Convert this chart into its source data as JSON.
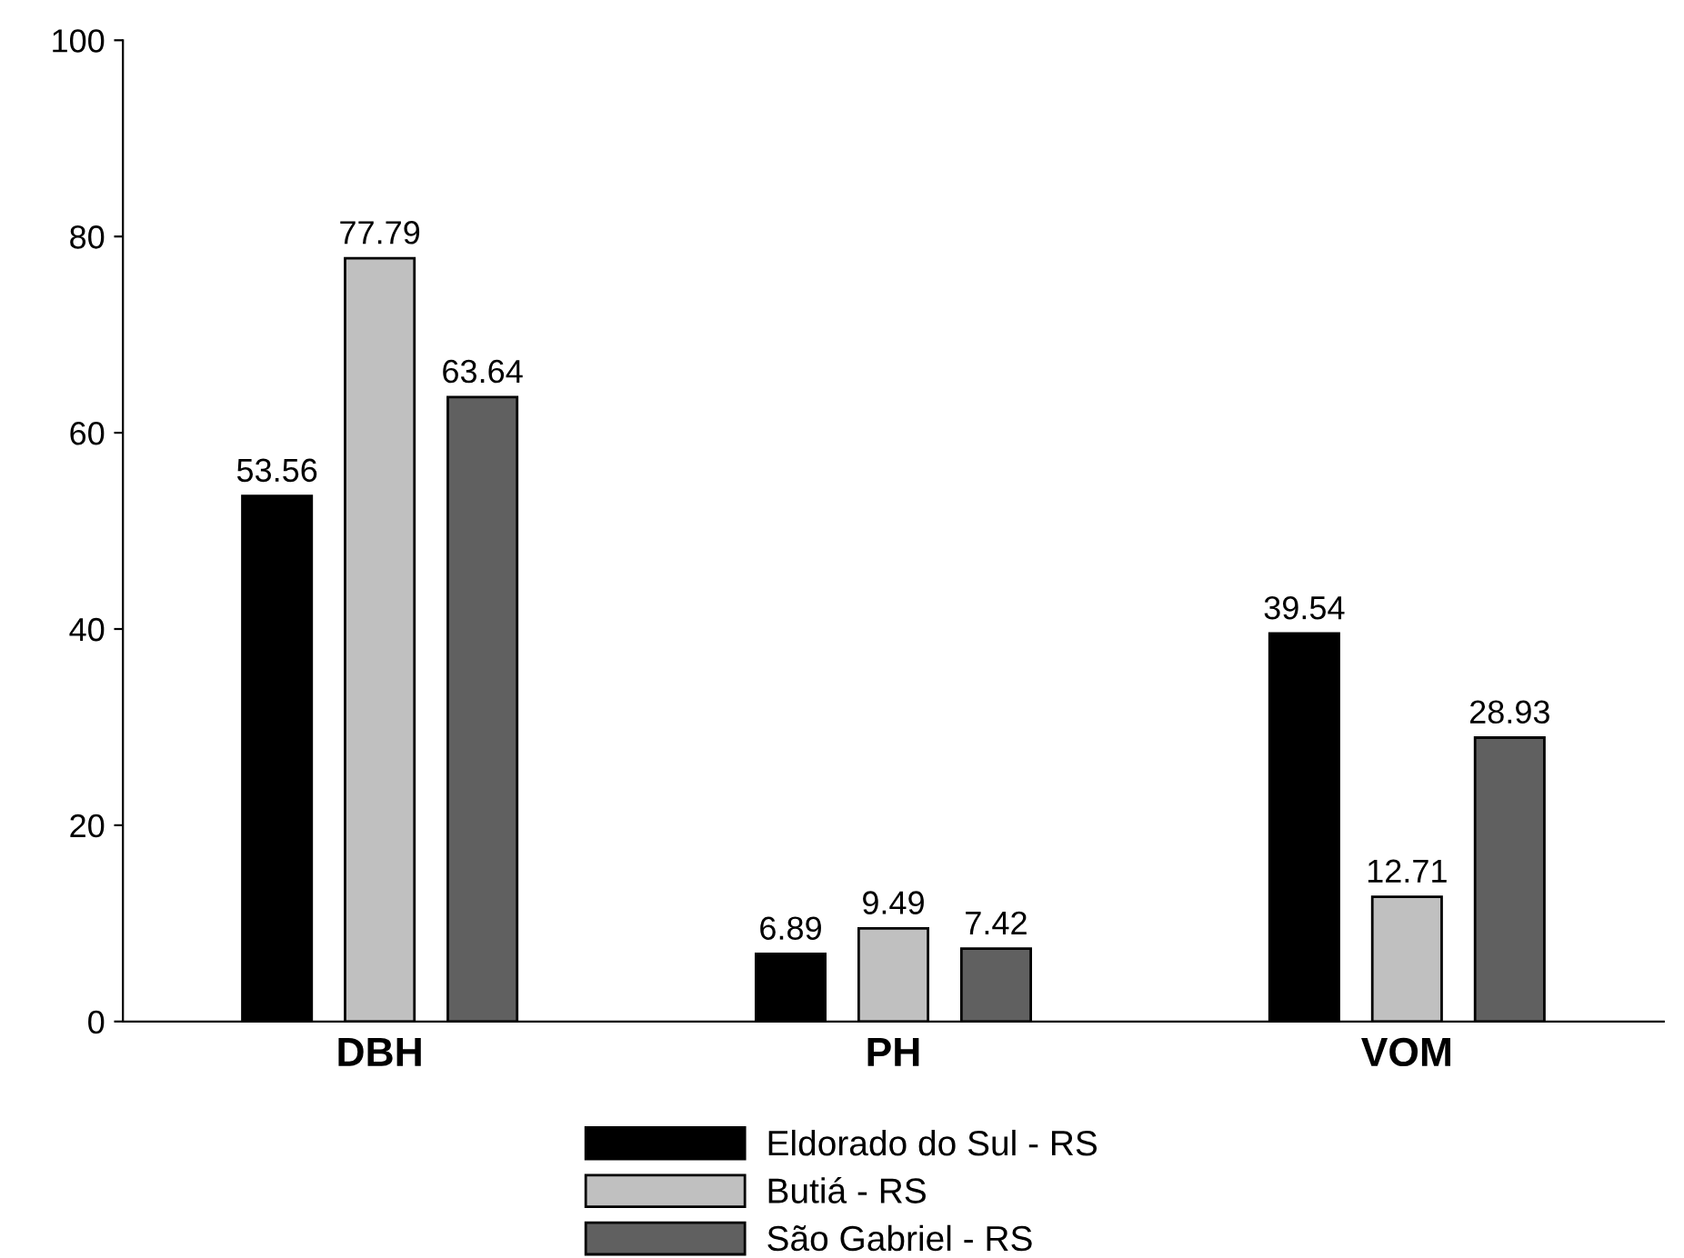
{
  "chart_data": {
    "type": "bar",
    "categories": [
      "DBH",
      "PH",
      "VOM"
    ],
    "series": [
      {
        "name": "Eldorado do Sul - RS",
        "color": "#000000",
        "values": [
          53.56,
          6.89,
          39.54
        ]
      },
      {
        "name": "Butiá - RS",
        "color": "#c0c0c0",
        "values": [
          77.79,
          9.49,
          12.71
        ]
      },
      {
        "name": "São Gabriel - RS",
        "color": "#606060",
        "values": [
          63.64,
          7.42,
          28.93
        ]
      }
    ],
    "ylim": [
      0,
      100
    ],
    "yticks": [
      0,
      20,
      40,
      60,
      80,
      100
    ],
    "data_labels": true,
    "legend": "bottom",
    "grid": false
  }
}
